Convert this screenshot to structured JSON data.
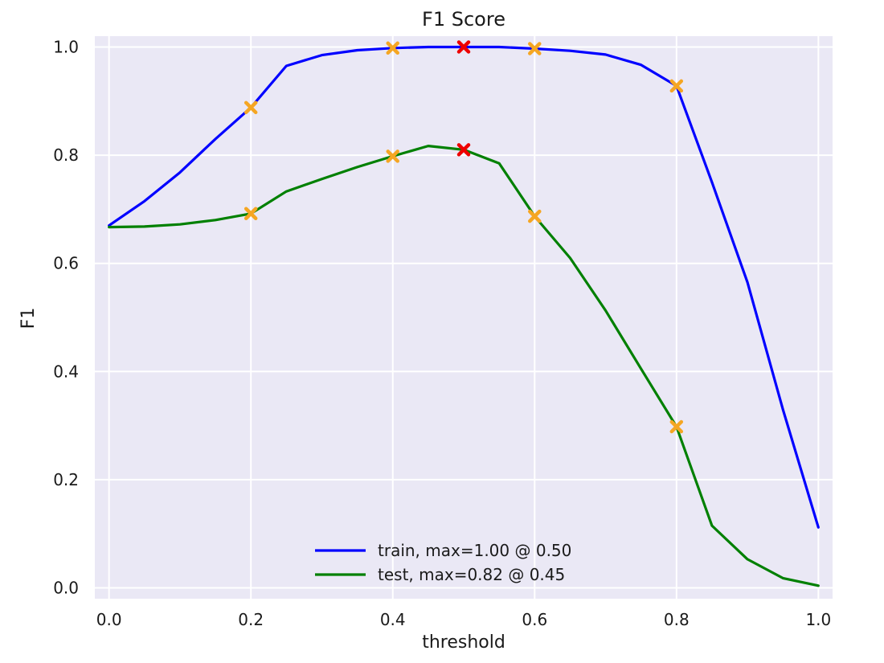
{
  "chart_data": {
    "type": "line",
    "title": "F1 Score",
    "xlabel": "threshold",
    "ylabel": "F1",
    "xlim": [
      -0.02,
      1.02
    ],
    "ylim": [
      -0.02,
      1.02
    ],
    "xticks": [
      0.0,
      0.2,
      0.4,
      0.6,
      0.8,
      1.0
    ],
    "xtick_labels": [
      "0.0",
      "0.2",
      "0.4",
      "0.6",
      "0.8",
      "1.0"
    ],
    "yticks": [
      0.0,
      0.2,
      0.4,
      0.6,
      0.8,
      1.0
    ],
    "ytick_labels": [
      "0.0",
      "0.2",
      "0.4",
      "0.6",
      "0.8",
      "1.0"
    ],
    "grid": true,
    "legend_position": "bottom-center",
    "x": [
      0.0,
      0.05,
      0.1,
      0.15,
      0.2,
      0.25,
      0.3,
      0.35,
      0.4,
      0.45,
      0.5,
      0.55,
      0.6,
      0.65,
      0.7,
      0.75,
      0.8,
      0.85,
      0.9,
      0.95,
      1.0
    ],
    "series": [
      {
        "name": "train, max=1.00 @ 0.50",
        "color": "#0000ff",
        "values": [
          0.67,
          0.715,
          0.768,
          0.83,
          0.888,
          0.965,
          0.985,
          0.994,
          0.998,
          1.0,
          1.0,
          1.0,
          0.997,
          0.993,
          0.986,
          0.967,
          0.928,
          0.75,
          0.565,
          0.33,
          0.112
        ]
      },
      {
        "name": "test, max=0.82 @ 0.45",
        "color": "#008000",
        "values": [
          0.667,
          0.668,
          0.672,
          0.68,
          0.692,
          0.733,
          0.756,
          0.778,
          0.798,
          0.817,
          0.81,
          0.785,
          0.687,
          0.61,
          0.513,
          0.405,
          0.298,
          0.115,
          0.053,
          0.018,
          0.004
        ]
      }
    ],
    "markers": {
      "orange_color": "#f5a623",
      "red_color": "#ee0000",
      "points": [
        {
          "x": 0.2,
          "y": 0.888,
          "color": "orange"
        },
        {
          "x": 0.4,
          "y": 0.998,
          "color": "orange"
        },
        {
          "x": 0.6,
          "y": 0.997,
          "color": "orange"
        },
        {
          "x": 0.8,
          "y": 0.928,
          "color": "orange"
        },
        {
          "x": 0.5,
          "y": 1.0,
          "color": "red"
        },
        {
          "x": 0.2,
          "y": 0.692,
          "color": "orange"
        },
        {
          "x": 0.4,
          "y": 0.798,
          "color": "orange"
        },
        {
          "x": 0.6,
          "y": 0.687,
          "color": "orange"
        },
        {
          "x": 0.8,
          "y": 0.298,
          "color": "orange"
        },
        {
          "x": 0.5,
          "y": 0.81,
          "color": "red"
        }
      ]
    }
  }
}
